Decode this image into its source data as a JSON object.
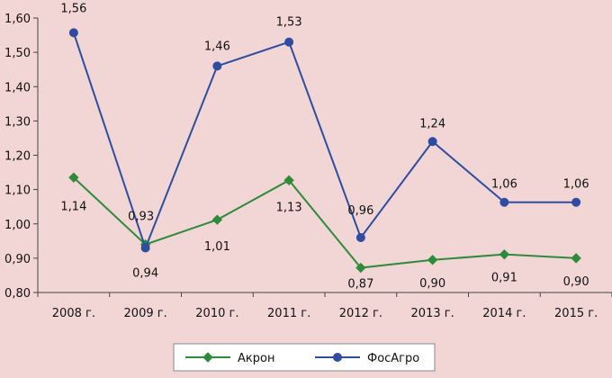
{
  "chart_data": {
    "type": "line",
    "title": "",
    "xlabel": "",
    "ylabel": "",
    "categories": [
      "2008 г.",
      "2009 г.",
      "2010 г.",
      "2011 г.",
      "2012 г.",
      "2013 г.",
      "2014 г.",
      "2015 г."
    ],
    "ylim": [
      0.8,
      1.6
    ],
    "yticks": [
      "0,80",
      "0,90",
      "1,00",
      "1,10",
      "1,20",
      "1,30",
      "1,40",
      "1,50",
      "1,60"
    ],
    "ytick_values": [
      0.8,
      0.9,
      1.0,
      1.1,
      1.2,
      1.3,
      1.4,
      1.5,
      1.6
    ],
    "grid": false,
    "legend_position": "bottom",
    "series": [
      {
        "name": "Акрон",
        "color": "#2e8b3a",
        "marker": "diamond",
        "values": [
          1.135,
          0.94,
          1.012,
          1.127,
          0.872,
          0.895,
          0.911,
          0.9
        ],
        "labels": [
          "1,14",
          "0,94",
          "1,01",
          "1,13",
          "0,87",
          "0,90",
          "0,91",
          "0,90"
        ]
      },
      {
        "name": "ФосАгро",
        "color": "#2e4da0",
        "marker": "circle",
        "values": [
          1.557,
          0.93,
          1.46,
          1.53,
          0.96,
          1.24,
          1.063,
          1.063
        ],
        "labels": [
          "1,56",
          "0,93",
          "1,46",
          "1,53",
          "0,96",
          "1,24",
          "1,06",
          "1,06"
        ]
      }
    ]
  }
}
